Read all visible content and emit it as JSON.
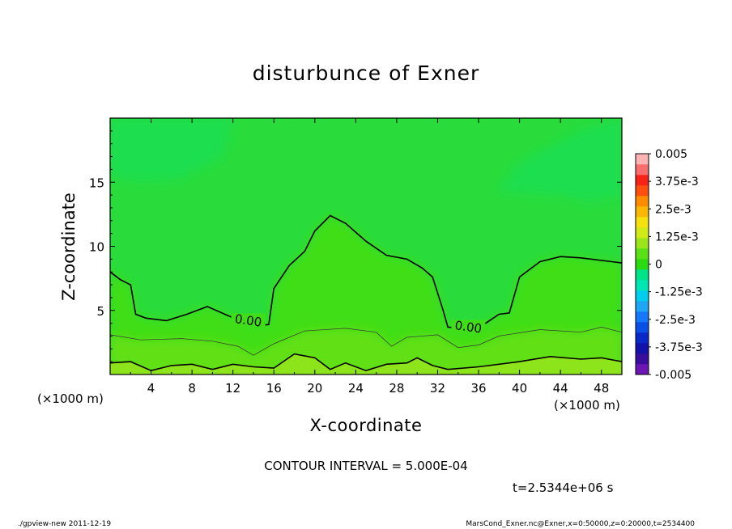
{
  "title": "disturbunce of Exner",
  "footer": {
    "left": "./gpview-new  2011-12-19",
    "right": "MarsCond_Exner.nc@Exner,x=0:50000,z=0:20000,t=2534400"
  },
  "chart_data": {
    "type": "heatmap",
    "title": "disturbunce of Exner",
    "xlabel": "X-coordinate",
    "ylabel": "Z-coordinate",
    "x_unit_label": "(×1000 m)",
    "y_unit_label": "(×1000 m)",
    "xlim": [
      0,
      50
    ],
    "ylim": [
      0,
      20
    ],
    "x_ticks": [
      4,
      8,
      12,
      16,
      20,
      24,
      28,
      32,
      36,
      40,
      44,
      48
    ],
    "y_ticks": [
      5,
      10,
      15
    ],
    "contour_interval_text": "CONTOUR INTERVAL = 5.000E-04",
    "time_text": "t=2.5344e+06 s",
    "contour_labels": [
      {
        "text": "0.00",
        "x": 13.5,
        "z": 4.2
      },
      {
        "text": "0.00",
        "x": 35.0,
        "z": 3.7
      }
    ],
    "zero_contour": [
      [
        0,
        8.0
      ],
      [
        1,
        7.4
      ],
      [
        2,
        7.0
      ],
      [
        2.5,
        4.7
      ],
      [
        3.5,
        4.4
      ],
      [
        5.5,
        4.2
      ],
      [
        7.5,
        4.7
      ],
      [
        9.5,
        5.3
      ],
      [
        11.5,
        4.6
      ],
      [
        13,
        4.1
      ],
      [
        14.5,
        3.8
      ],
      [
        15.5,
        3.9
      ],
      [
        16,
        6.7
      ],
      [
        17.5,
        8.5
      ],
      [
        19,
        9.6
      ],
      [
        20,
        11.2
      ],
      [
        21.5,
        12.4
      ],
      [
        23,
        11.8
      ],
      [
        25,
        10.4
      ],
      [
        27,
        9.3
      ],
      [
        29,
        9.0
      ],
      [
        30.5,
        8.3
      ],
      [
        31.5,
        7.6
      ],
      [
        32.5,
        5.1
      ],
      [
        33,
        3.7
      ],
      [
        34.5,
        3.6
      ],
      [
        36.5,
        3.9
      ],
      [
        38,
        4.7
      ],
      [
        39,
        4.8
      ],
      [
        40,
        7.6
      ],
      [
        42,
        8.8
      ],
      [
        44,
        9.2
      ],
      [
        46,
        9.1
      ],
      [
        49,
        8.8
      ],
      [
        50,
        8.7
      ]
    ],
    "thin_contour": [
      [
        0,
        3.1
      ],
      [
        3,
        2.7
      ],
      [
        7,
        2.8
      ],
      [
        10,
        2.6
      ],
      [
        12.5,
        2.2
      ],
      [
        14,
        1.5
      ],
      [
        16,
        2.4
      ],
      [
        19,
        3.4
      ],
      [
        23,
        3.6
      ],
      [
        26,
        3.3
      ],
      [
        27.5,
        2.2
      ],
      [
        29,
        2.9
      ],
      [
        32,
        3.1
      ],
      [
        34,
        2.1
      ],
      [
        36,
        2.3
      ],
      [
        38,
        3.0
      ],
      [
        42,
        3.5
      ],
      [
        46,
        3.3
      ],
      [
        48,
        3.7
      ],
      [
        50,
        3.3
      ]
    ],
    "low_contour": [
      [
        0,
        0.9
      ],
      [
        2,
        1.0
      ],
      [
        4,
        0.3
      ],
      [
        6,
        0.7
      ],
      [
        8,
        0.8
      ],
      [
        10,
        0.4
      ],
      [
        12,
        0.8
      ],
      [
        14,
        0.6
      ],
      [
        16,
        0.5
      ],
      [
        18,
        1.6
      ],
      [
        20,
        1.3
      ],
      [
        21.5,
        0.4
      ],
      [
        23,
        0.9
      ],
      [
        25,
        0.3
      ],
      [
        27,
        0.8
      ],
      [
        29,
        0.9
      ],
      [
        30,
        1.3
      ],
      [
        31.5,
        0.7
      ],
      [
        33,
        0.4
      ],
      [
        36,
        0.6
      ],
      [
        40,
        1.0
      ],
      [
        43,
        1.4
      ],
      [
        46,
        1.2
      ],
      [
        48,
        1.3
      ],
      [
        50,
        1.0
      ]
    ],
    "colorbar": {
      "levels": [
        -0.005,
        -0.0045,
        -0.004,
        -0.0035,
        -0.003,
        -0.0025,
        -0.002,
        -0.0015,
        -0.001,
        -0.0005,
        0,
        0.0005,
        0.001,
        0.0015,
        0.002,
        0.0025,
        0.003,
        0.0035,
        0.004,
        0.0045,
        0.005
      ],
      "colors": [
        "#6c16b4",
        "#3a0e9c",
        "#1212aa",
        "#0a28c8",
        "#0a50e6",
        "#1478f8",
        "#1ea6f4",
        "#00cced",
        "#00e6b4",
        "#00e38a",
        "#2bda10",
        "#5ae016",
        "#9ae61a",
        "#d2ea18",
        "#f5e010",
        "#f9b808",
        "#ff8c00",
        "#fb5010",
        "#f52318",
        "#f86e6e",
        "#fbb4b4"
      ],
      "tick_labels": [
        "0.005",
        "3.75e-3",
        "2.5e-3",
        "1.25e-3",
        "0",
        "-1.25e-3",
        "-2.5e-3",
        "-3.75e-3",
        "-0.005"
      ]
    }
  }
}
